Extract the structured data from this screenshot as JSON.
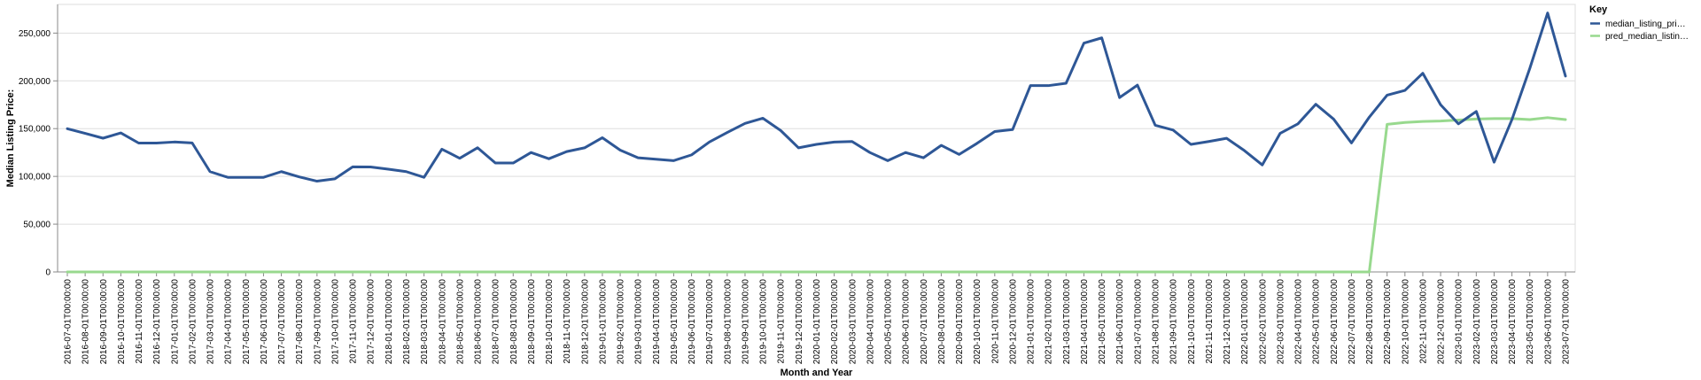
{
  "chart_data": {
    "type": "line",
    "xlabel": "Month and Year",
    "ylabel": "Median Listing Price:",
    "ylim": [
      0,
      280000
    ],
    "yticks": [
      0,
      50000,
      100000,
      150000,
      200000,
      250000
    ],
    "ytick_labels": [
      "0",
      "50,000",
      "100,000",
      "150,000",
      "200,000",
      "250,000"
    ],
    "grid": true,
    "legend_title": "Key",
    "legend_position": "top-right",
    "categories": [
      "2016-07-01T00:00:00",
      "2016-08-01T00:00:00",
      "2016-09-01T00:00:00",
      "2016-10-01T00:00:00",
      "2016-11-01T00:00:00",
      "2016-12-01T00:00:00",
      "2017-01-01T00:00:00",
      "2017-02-01T00:00:00",
      "2017-03-01T00:00:00",
      "2017-04-01T00:00:00",
      "2017-05-01T00:00:00",
      "2017-06-01T00:00:00",
      "2017-07-01T00:00:00",
      "2017-08-01T00:00:00",
      "2017-09-01T00:00:00",
      "2017-10-01T00:00:00",
      "2017-11-01T00:00:00",
      "2017-12-01T00:00:00",
      "2018-01-01T00:00:00",
      "2018-02-01T00:00:00",
      "2018-03-01T00:00:00",
      "2018-04-01T00:00:00",
      "2018-05-01T00:00:00",
      "2018-06-01T00:00:00",
      "2018-07-01T00:00:00",
      "2018-08-01T00:00:00",
      "2018-09-01T00:00:00",
      "2018-10-01T00:00:00",
      "2018-11-01T00:00:00",
      "2018-12-01T00:00:00",
      "2019-01-01T00:00:00",
      "2019-02-01T00:00:00",
      "2019-03-01T00:00:00",
      "2019-04-01T00:00:00",
      "2019-05-01T00:00:00",
      "2019-06-01T00:00:00",
      "2019-07-01T00:00:00",
      "2019-08-01T00:00:00",
      "2019-09-01T00:00:00",
      "2019-10-01T00:00:00",
      "2019-11-01T00:00:00",
      "2019-12-01T00:00:00",
      "2020-01-01T00:00:00",
      "2020-02-01T00:00:00",
      "2020-03-01T00:00:00",
      "2020-04-01T00:00:00",
      "2020-05-01T00:00:00",
      "2020-06-01T00:00:00",
      "2020-07-01T00:00:00",
      "2020-08-01T00:00:00",
      "2020-09-01T00:00:00",
      "2020-10-01T00:00:00",
      "2020-11-01T00:00:00",
      "2020-12-01T00:00:00",
      "2021-01-01T00:00:00",
      "2021-02-01T00:00:00",
      "2021-03-01T00:00:00",
      "2021-04-01T00:00:00",
      "2021-05-01T00:00:00",
      "2021-06-01T00:00:00",
      "2021-07-01T00:00:00",
      "2021-08-01T00:00:00",
      "2021-09-01T00:00:00",
      "2021-10-01T00:00:00",
      "2021-11-01T00:00:00",
      "2021-12-01T00:00:00",
      "2022-01-01T00:00:00",
      "2022-02-01T00:00:00",
      "2022-03-01T00:00:00",
      "2022-04-01T00:00:00",
      "2022-05-01T00:00:00",
      "2022-06-01T00:00:00",
      "2022-07-01T00:00:00",
      "2022-08-01T00:00:00",
      "2022-09-01T00:00:00",
      "2022-10-01T00:00:00",
      "2022-11-01T00:00:00",
      "2022-12-01T00:00:00",
      "2023-01-01T00:00:00",
      "2023-02-01T00:00:00",
      "2023-03-01T00:00:00",
      "2023-04-01T00:00:00",
      "2023-05-01T00:00:00",
      "2023-06-01T00:00:00",
      "2023-07-01T00:00:00"
    ],
    "series": [
      {
        "name": "median_listing_pri…",
        "color": "#2e5796",
        "values": [
          149900,
          145000,
          140000,
          145500,
          134900,
          134900,
          136000,
          135000,
          105000,
          99000,
          99000,
          99000,
          105000,
          99500,
          95000,
          97500,
          110000,
          109900,
          107500,
          105000,
          99000,
          128500,
          119000,
          130000,
          114000,
          114000,
          125000,
          118500,
          126000,
          129900,
          140500,
          127500,
          119500,
          118000,
          116500,
          122500,
          136000,
          146000,
          155500,
          160900,
          148000,
          129900,
          133500,
          135900,
          136500,
          125000,
          116500,
          125000,
          119500,
          132500,
          123000,
          134500,
          147000,
          149000,
          195000,
          195000,
          197500,
          239500,
          245000,
          182500,
          195500,
          153500,
          148500,
          133500,
          136500,
          139900,
          127000,
          112000,
          145000,
          155000,
          175500,
          160000,
          135000,
          162000,
          185000,
          190000,
          208000,
          175000,
          155000,
          168000,
          114900,
          159500,
          213000,
          271000,
          205000
        ]
      },
      {
        "name": "pred_median_listin…",
        "color": "#98d98e",
        "values": [
          0,
          0,
          0,
          0,
          0,
          0,
          0,
          0,
          0,
          0,
          0,
          0,
          0,
          0,
          0,
          0,
          0,
          0,
          0,
          0,
          0,
          0,
          0,
          0,
          0,
          0,
          0,
          0,
          0,
          0,
          0,
          0,
          0,
          0,
          0,
          0,
          0,
          0,
          0,
          0,
          0,
          0,
          0,
          0,
          0,
          0,
          0,
          0,
          0,
          0,
          0,
          0,
          0,
          0,
          0,
          0,
          0,
          0,
          0,
          0,
          0,
          0,
          0,
          0,
          0,
          0,
          0,
          0,
          0,
          0,
          0,
          0,
          0,
          0,
          154500,
          156500,
          157500,
          158000,
          159000,
          160000,
          160500,
          160500,
          159500,
          161500,
          159500
        ]
      }
    ]
  }
}
